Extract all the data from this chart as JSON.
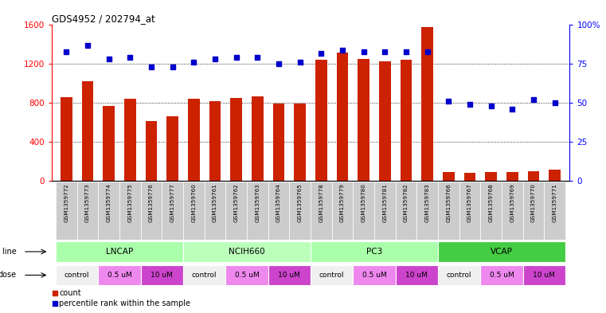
{
  "title": "GDS4952 / 202794_at",
  "samples": [
    "GSM1359772",
    "GSM1359773",
    "GSM1359774",
    "GSM1359775",
    "GSM1359776",
    "GSM1359777",
    "GSM1359760",
    "GSM1359761",
    "GSM1359762",
    "GSM1359763",
    "GSM1359764",
    "GSM1359765",
    "GSM1359778",
    "GSM1359779",
    "GSM1359780",
    "GSM1359781",
    "GSM1359782",
    "GSM1359783",
    "GSM1359766",
    "GSM1359767",
    "GSM1359768",
    "GSM1359769",
    "GSM1359770",
    "GSM1359771"
  ],
  "counts": [
    860,
    1020,
    770,
    840,
    610,
    660,
    840,
    820,
    850,
    870,
    790,
    790,
    1240,
    1320,
    1250,
    1230,
    1240,
    1580,
    90,
    80,
    85,
    90,
    95,
    110
  ],
  "percentile": [
    83,
    87,
    78,
    79,
    73,
    73,
    76,
    78,
    79,
    79,
    75,
    76,
    82,
    84,
    83,
    83,
    83,
    83,
    51,
    49,
    48,
    46,
    52,
    50
  ],
  "cell_groups": [
    {
      "name": "LNCAP",
      "start": 0,
      "end": 6,
      "color": "#aaffaa"
    },
    {
      "name": "NCIH660",
      "start": 6,
      "end": 12,
      "color": "#bbffbb"
    },
    {
      "name": "PC3",
      "start": 12,
      "end": 18,
      "color": "#aaffaa"
    },
    {
      "name": "VCAP",
      "start": 18,
      "end": 24,
      "color": "#44cc44"
    }
  ],
  "dose_groups": [
    {
      "label": "control",
      "start": 0,
      "end": 2,
      "color": "#f0f0f0"
    },
    {
      "label": "0.5 uM",
      "start": 2,
      "end": 4,
      "color": "#ee88ee"
    },
    {
      "label": "10 uM",
      "start": 4,
      "end": 6,
      "color": "#cc44cc"
    },
    {
      "label": "control",
      "start": 6,
      "end": 8,
      "color": "#f0f0f0"
    },
    {
      "label": "0.5 uM",
      "start": 8,
      "end": 10,
      "color": "#ee88ee"
    },
    {
      "label": "10 uM",
      "start": 10,
      "end": 12,
      "color": "#cc44cc"
    },
    {
      "label": "control",
      "start": 12,
      "end": 14,
      "color": "#f0f0f0"
    },
    {
      "label": "0.5 uM",
      "start": 14,
      "end": 16,
      "color": "#ee88ee"
    },
    {
      "label": "10 uM",
      "start": 16,
      "end": 18,
      "color": "#cc44cc"
    },
    {
      "label": "control",
      "start": 18,
      "end": 20,
      "color": "#f0f0f0"
    },
    {
      "label": "0.5 uM",
      "start": 20,
      "end": 22,
      "color": "#ee88ee"
    },
    {
      "label": "10 uM",
      "start": 22,
      "end": 24,
      "color": "#cc44cc"
    }
  ],
  "bar_color": "#cc2200",
  "dot_color": "#0000cc",
  "ylim_left": [
    0,
    1600
  ],
  "ylim_right": [
    0,
    100
  ],
  "yticks_left": [
    0,
    400,
    800,
    1200,
    1600
  ],
  "ytick_labels_left": [
    "0",
    "400",
    "800",
    "1200",
    "1600"
  ],
  "yticks_right": [
    0,
    25,
    50,
    75,
    100
  ],
  "ytick_labels_right": [
    "0",
    "25",
    "50",
    "75",
    "100%"
  ],
  "grid_values": [
    400,
    800,
    1200
  ],
  "plot_bg": "#ffffff",
  "sample_bg": "#cccccc"
}
